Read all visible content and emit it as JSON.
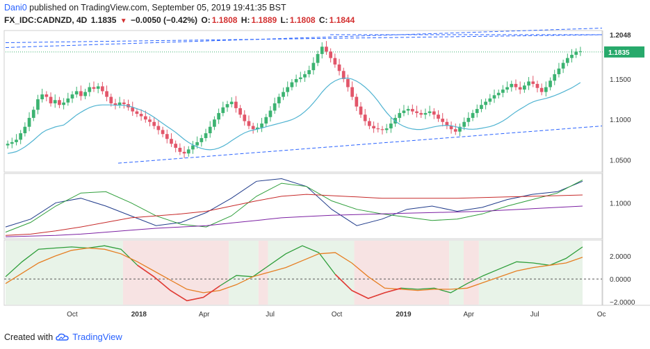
{
  "header": {
    "user": "Dani0",
    "published_text": "published on TradingView.com, September 05, 2019 19:41:35 BST",
    "symbol": "FX_IDC:CADNZD, 4D",
    "last": "1.1835",
    "change_arrow": "▼",
    "change": "−0.0050 (−0.42%)",
    "o_label": "O:",
    "o_value": "1.1808",
    "h_label": "H:",
    "h_value": "1.1889",
    "l_label": "L:",
    "l_value": "1.1808",
    "c_label": "C:",
    "c_value": "1.1844"
  },
  "footer": {
    "created_with": "Created with",
    "brand": "TradingView"
  },
  "colors": {
    "up": "#3cb371",
    "down": "#e2566a",
    "ma": "#4fb3d1",
    "price_label_bg": "#27a96b",
    "trend": "#2962ff",
    "last_line": "#3cb371"
  },
  "chart_data": [
    {
      "type": "candlestick",
      "title": "",
      "x_ticks": [
        "Oct",
        "2018",
        "Apr",
        "Jul",
        "Oct",
        "2019",
        "Apr",
        "Jul",
        "Oc"
      ],
      "y_ticks": [
        "1.0500",
        "1.1000",
        "1.1500",
        "1.2048"
      ],
      "ylim": [
        1.035,
        1.21
      ],
      "last_price_label": "1.1835",
      "high_label": "1.2048",
      "x_dates": [
        "2017-07-01",
        "2019-09-05"
      ],
      "closes": [
        1.07,
        1.072,
        1.075,
        1.083,
        1.091,
        1.102,
        1.112,
        1.125,
        1.131,
        1.128,
        1.12,
        1.124,
        1.118,
        1.121,
        1.126,
        1.131,
        1.135,
        1.129,
        1.134,
        1.14,
        1.138,
        1.141,
        1.135,
        1.128,
        1.12,
        1.118,
        1.121,
        1.119,
        1.115,
        1.11,
        1.107,
        1.104,
        1.1,
        1.097,
        1.092,
        1.087,
        1.082,
        1.076,
        1.07,
        1.065,
        1.06,
        1.058,
        1.063,
        1.068,
        1.072,
        1.077,
        1.083,
        1.091,
        1.1,
        1.108,
        1.115,
        1.119,
        1.122,
        1.114,
        1.106,
        1.098,
        1.092,
        1.088,
        1.09,
        1.095,
        1.103,
        1.111,
        1.12,
        1.128,
        1.134,
        1.14,
        1.146,
        1.15,
        1.152,
        1.156,
        1.161,
        1.17,
        1.181,
        1.19,
        1.184,
        1.176,
        1.168,
        1.16,
        1.15,
        1.14,
        1.128,
        1.116,
        1.106,
        1.098,
        1.092,
        1.089,
        1.088,
        1.087,
        1.089,
        1.095,
        1.102,
        1.108,
        1.111,
        1.113,
        1.11,
        1.108,
        1.106,
        1.108,
        1.11,
        1.106,
        1.101,
        1.097,
        1.092,
        1.088,
        1.085,
        1.091,
        1.097,
        1.102,
        1.108,
        1.113,
        1.118,
        1.122,
        1.126,
        1.13,
        1.133,
        1.137,
        1.14,
        1.144,
        1.14,
        1.137,
        1.142,
        1.147,
        1.144,
        1.139,
        1.134,
        1.14,
        1.148,
        1.156,
        1.163,
        1.17,
        1.176,
        1.18,
        1.184,
        1.1844
      ],
      "moving_average_label": "",
      "trend_lines": "dashed blue channel lines"
    },
    {
      "type": "line",
      "title": "",
      "y_ticks": [
        "1.1000"
      ],
      "series_colors": [
        "#1f3a8a",
        "#2e9e3a",
        "#c62828",
        "#7b1fa2"
      ]
    },
    {
      "type": "line",
      "title": "",
      "y_ticks": [
        "2.0000",
        "0.0000",
        "−2.0000"
      ],
      "ylim": [
        -2.3,
        3.4
      ],
      "series_colors": [
        "#2e9e3a",
        "#e67e22",
        "#e53935"
      ]
    }
  ]
}
